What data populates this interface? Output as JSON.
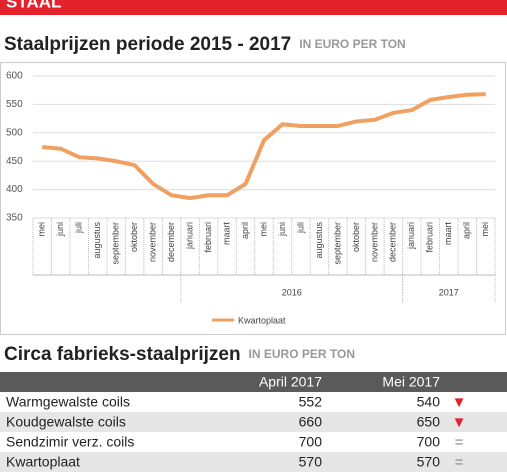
{
  "header": {
    "section": "STAAL"
  },
  "chart_data": {
    "type": "line",
    "title": "Staalprijzen periode 2015 - 2017",
    "subtitle": "IN EURO PER TON",
    "categories": [
      "mei",
      "juni",
      "juli",
      "augustus",
      "september",
      "oktober",
      "november",
      "december",
      "januari",
      "februari",
      "maart",
      "april",
      "mei",
      "juni",
      "juli",
      "augustus",
      "september",
      "oktober",
      "november",
      "december",
      "januari",
      "februari",
      "maart",
      "april",
      "mei"
    ],
    "year_groups": [
      {
        "label": "2016",
        "start": 8,
        "end": 19
      },
      {
        "label": "2017",
        "start": 20,
        "end": 24
      }
    ],
    "series": [
      {
        "name": "Kwartoplaat",
        "color": "#f0a060",
        "values": [
          475,
          472,
          457,
          455,
          450,
          443,
          410,
          390,
          385,
          390,
          390,
          410,
          487,
          515,
          512,
          512,
          512,
          520,
          523,
          535,
          540,
          558,
          563,
          567,
          568
        ]
      }
    ],
    "ylim": [
      350,
      600
    ],
    "yticks": [
      350,
      400,
      450,
      500,
      550,
      600
    ],
    "grid": true,
    "legend": "bottom"
  },
  "table": {
    "title": "Circa fabrieks-staalprijzen",
    "subtitle": "IN EURO PER TON",
    "columns": [
      "April 2017",
      "Mei 2017"
    ],
    "rows": [
      [
        "Warmgewalste coils",
        552,
        540,
        "▼"
      ],
      [
        "Koudgewalste coils",
        660,
        650,
        "▼"
      ],
      [
        "Sendzimir verz. coils",
        700,
        700,
        "="
      ],
      [
        "Kwartoplaat",
        570,
        570,
        "="
      ]
    ]
  }
}
